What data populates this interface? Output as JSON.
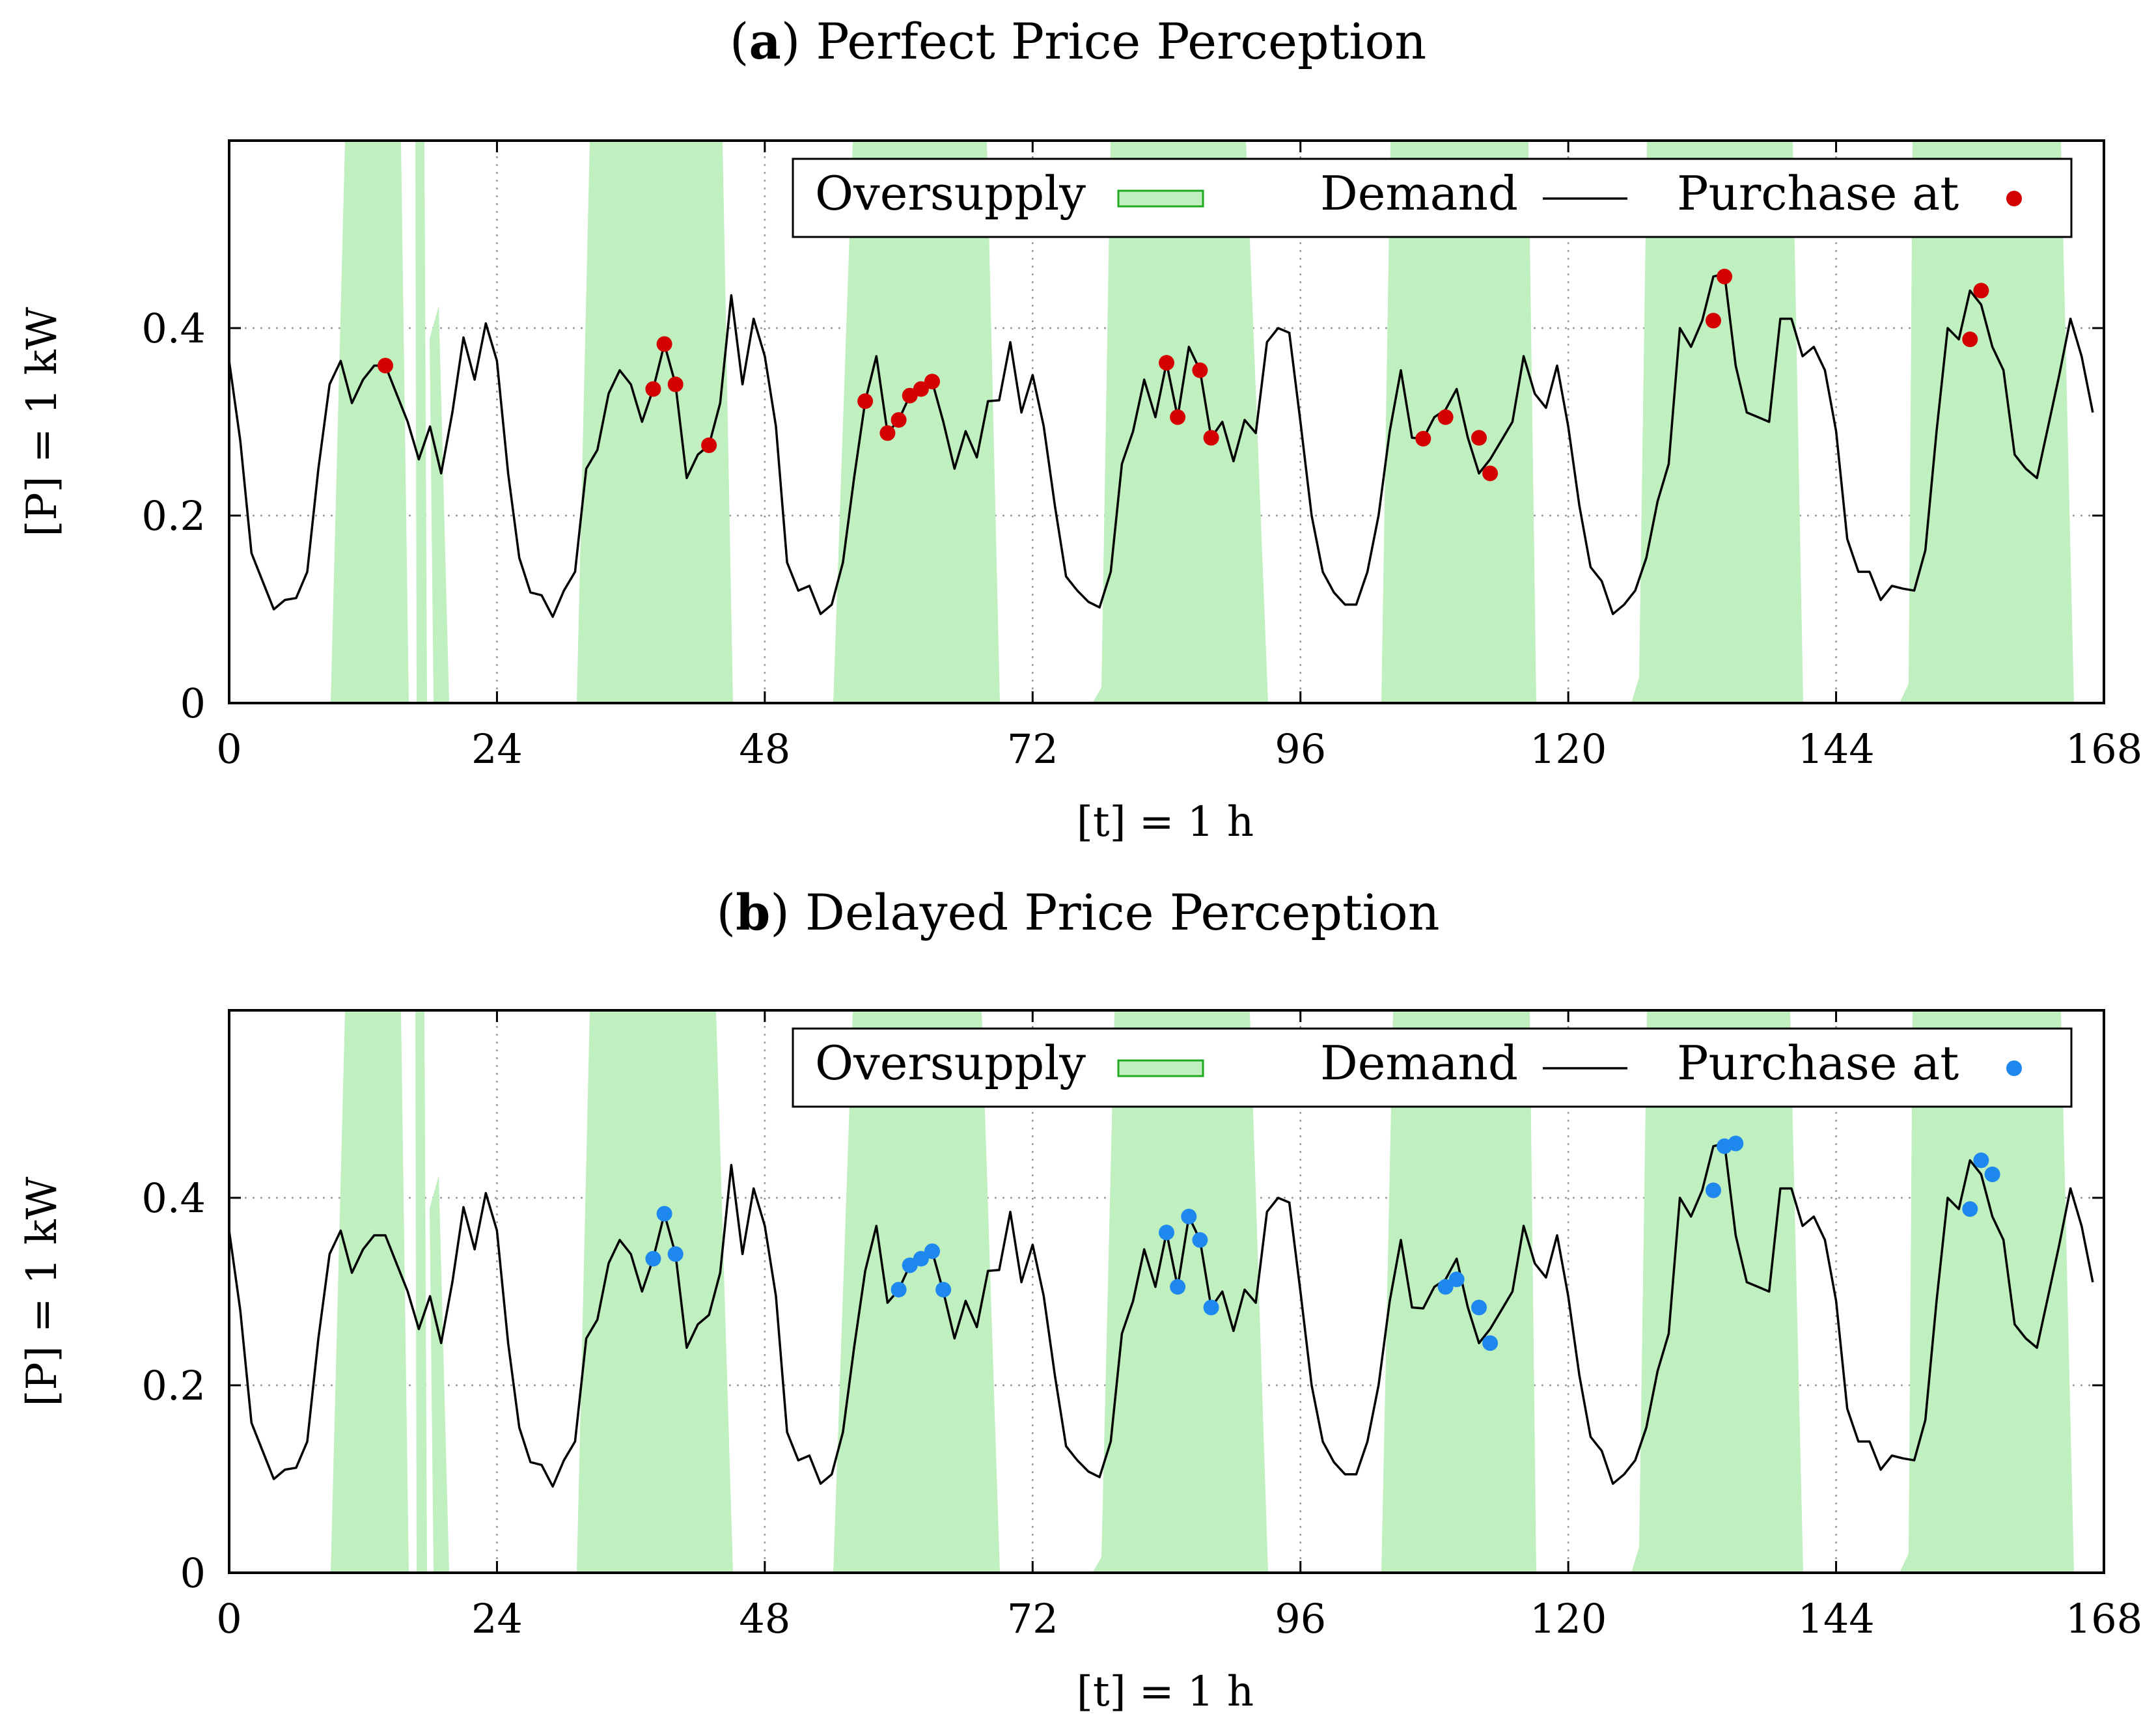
{
  "chart_data": [
    {
      "type": "line",
      "title_label": "a",
      "title": "Perfect Price Perception",
      "xlabel": "[t] = 1 h",
      "ylabel": "[P] = 1 kW",
      "xlim": [
        0,
        168
      ],
      "ylim": [
        0,
        0.6
      ],
      "x_ticks": [
        "0",
        "24",
        "48",
        "72",
        "96",
        "120",
        "144",
        "168"
      ],
      "y_ticks": [
        "0",
        "0.2",
        "0.4"
      ],
      "legend": {
        "oversupply": "Oversupply",
        "demand": "Demand",
        "purchase": "Purchase at"
      },
      "purchase_color": "#d40000",
      "purchases": [
        [
          14,
          0.36
        ],
        [
          38,
          0.335
        ],
        [
          39,
          0.383
        ],
        [
          40,
          0.34
        ],
        [
          43,
          0.275
        ],
        [
          57,
          0.322
        ],
        [
          59,
          0.288
        ],
        [
          60,
          0.302
        ],
        [
          61,
          0.328
        ],
        [
          62,
          0.335
        ],
        [
          63,
          0.343
        ],
        [
          84,
          0.363
        ],
        [
          85,
          0.305
        ],
        [
          87,
          0.355
        ],
        [
          88,
          0.283
        ],
        [
          107,
          0.282
        ],
        [
          109,
          0.305
        ],
        [
          112,
          0.283
        ],
        [
          113,
          0.245
        ],
        [
          133,
          0.408
        ],
        [
          134,
          0.455
        ],
        [
          156,
          0.388
        ],
        [
          157,
          0.44
        ]
      ]
    },
    {
      "type": "line",
      "title_label": "b",
      "title": "Delayed Price Perception",
      "xlabel": "[t] = 1 h",
      "ylabel": "[P] = 1 kW",
      "xlim": [
        0,
        168
      ],
      "ylim": [
        0,
        0.6
      ],
      "x_ticks": [
        "0",
        "24",
        "48",
        "72",
        "96",
        "120",
        "144",
        "168"
      ],
      "y_ticks": [
        "0",
        "0.2",
        "0.4"
      ],
      "legend": {
        "oversupply": "Oversupply",
        "demand": "Demand",
        "purchase": "Purchase at"
      },
      "purchase_color": "#1e88ee",
      "purchases": [
        [
          38,
          0.335
        ],
        [
          39,
          0.383
        ],
        [
          40,
          0.34
        ],
        [
          60,
          0.302
        ],
        [
          61,
          0.328
        ],
        [
          62,
          0.335
        ],
        [
          63,
          0.343
        ],
        [
          64,
          0.302
        ],
        [
          84,
          0.363
        ],
        [
          85,
          0.305
        ],
        [
          86,
          0.38
        ],
        [
          87,
          0.355
        ],
        [
          88,
          0.283
        ],
        [
          109,
          0.305
        ],
        [
          110,
          0.313
        ],
        [
          112,
          0.283
        ],
        [
          113,
          0.245
        ],
        [
          133,
          0.408
        ],
        [
          134,
          0.455
        ],
        [
          135,
          0.458
        ],
        [
          156,
          0.388
        ],
        [
          157,
          0.44
        ],
        [
          158,
          0.425
        ]
      ]
    }
  ],
  "demand": [
    0.365,
    0.28,
    0.16,
    0.13,
    0.1,
    0.11,
    0.112,
    0.14,
    0.25,
    0.34,
    0.365,
    0.32,
    0.345,
    0.36,
    0.36,
    0.33,
    0.3,
    0.26,
    0.295,
    0.245,
    0.31,
    0.39,
    0.345,
    0.405,
    0.365,
    0.245,
    0.155,
    0.118,
    0.115,
    0.092,
    0.12,
    0.14,
    0.25,
    0.27,
    0.33,
    0.355,
    0.34,
    0.3,
    0.335,
    0.383,
    0.34,
    0.24,
    0.265,
    0.275,
    0.32,
    0.435,
    0.34,
    0.41,
    0.37,
    0.295,
    0.15,
    0.12,
    0.125,
    0.095,
    0.105,
    0.15,
    0.24,
    0.322,
    0.37,
    0.288,
    0.302,
    0.328,
    0.335,
    0.343,
    0.3,
    0.25,
    0.29,
    0.262,
    0.322,
    0.323,
    0.385,
    0.31,
    0.35,
    0.295,
    0.21,
    0.135,
    0.12,
    0.108,
    0.102,
    0.14,
    0.255,
    0.29,
    0.345,
    0.305,
    0.363,
    0.305,
    0.38,
    0.355,
    0.283,
    0.3,
    0.258,
    0.302,
    0.288,
    0.385,
    0.4,
    0.395,
    0.3,
    0.2,
    0.14,
    0.118,
    0.105,
    0.105,
    0.14,
    0.2,
    0.29,
    0.355,
    0.283,
    0.282,
    0.305,
    0.313,
    0.335,
    0.283,
    0.245,
    0.26,
    0.28,
    0.3,
    0.37,
    0.33,
    0.315,
    0.36,
    0.295,
    0.21,
    0.145,
    0.13,
    0.095,
    0.105,
    0.12,
    0.155,
    0.215,
    0.255,
    0.4,
    0.38,
    0.408,
    0.455,
    0.458,
    0.36,
    0.31,
    0.305,
    0.3,
    0.41,
    0.41,
    0.37,
    0.38,
    0.355,
    0.29,
    0.175,
    0.14,
    0.14,
    0.11,
    0.125,
    0.122,
    0.12,
    0.163,
    0.29,
    0.4,
    0.388,
    0.44,
    0.425,
    0.38,
    0.355,
    0.265,
    0.25,
    0.24,
    0.295,
    0.35,
    0.41,
    0.37,
    0.31
  ],
  "oversupply_blocks": [
    [
      9,
      19
    ],
    [
      31,
      45
    ],
    [
      54,
      69
    ],
    [
      78,
      93
    ],
    [
      103,
      117
    ],
    [
      126,
      141
    ],
    [
      150,
      165
    ]
  ]
}
